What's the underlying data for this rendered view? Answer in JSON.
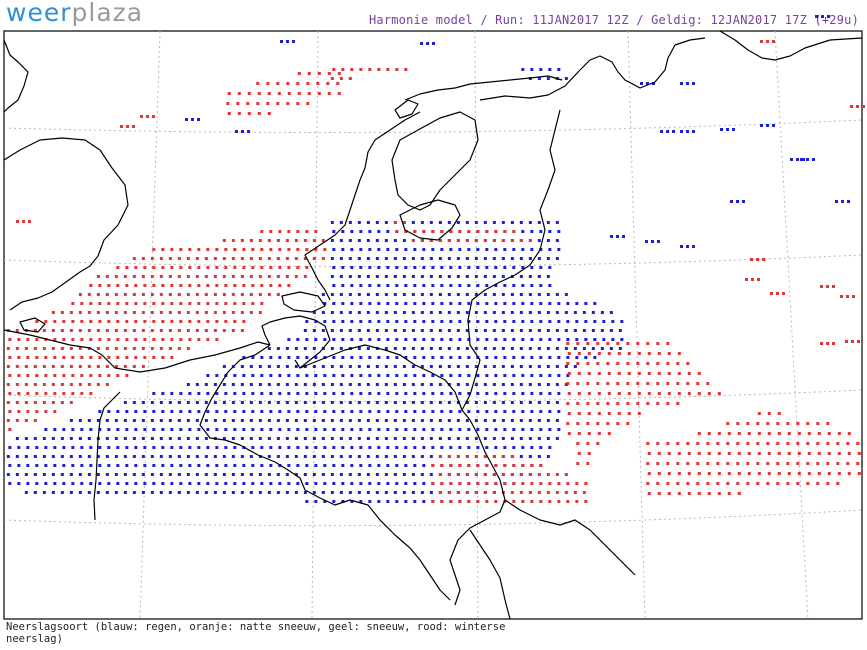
{
  "brand": {
    "part1": "weer",
    "part2": "plaza"
  },
  "header": "Harmonie model / Run: 11JAN2017 12Z / Geldig: 12JAN2017 17Z (+29u)",
  "legend": "Neerslagsoort (blauw: regen, oranje: natte sneeuw, geel: sneeuw, rood: winterse neerslag)",
  "colors": {
    "rain": "#1b1fd6",
    "winter": "#e23535",
    "border": "#000000",
    "grid": "#b8b8b8"
  }
}
